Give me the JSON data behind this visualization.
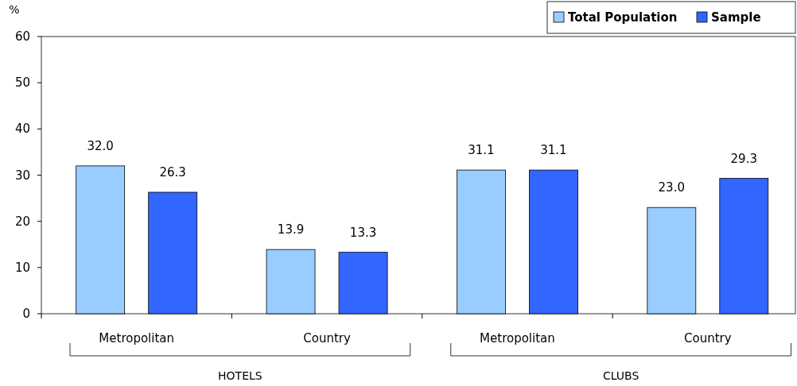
{
  "chart_data": {
    "type": "bar",
    "ylabel": "%",
    "categories": [
      "Metropolitan",
      "Country",
      "Metropolitan",
      "Country"
    ],
    "series": [
      {
        "name": "Total Population",
        "color": "#99ccff",
        "values": [
          32.0,
          13.9,
          31.1,
          23.0
        ],
        "value_labels": [
          "32.0",
          "13.9",
          "31.1",
          "23.0"
        ]
      },
      {
        "name": "Sample",
        "color": "#3366ff",
        "values": [
          26.3,
          13.3,
          31.1,
          29.3
        ],
        "value_labels": [
          "26.3",
          "13.3",
          "31.1",
          "29.3"
        ]
      }
    ],
    "ylim": [
      0,
      60
    ],
    "yticks": [
      0,
      10,
      20,
      30,
      40,
      50,
      60
    ],
    "legend": "top right",
    "grid": false,
    "annotations": [
      "HOTELS",
      "CLUBS"
    ]
  }
}
